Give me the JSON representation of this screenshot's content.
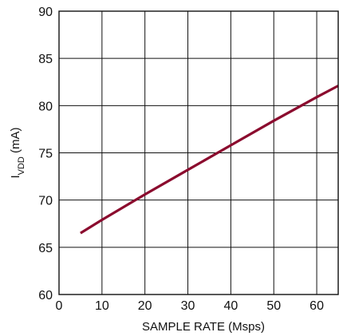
{
  "chart_data": {
    "type": "line",
    "title": "",
    "xlabel": "SAMPLE RATE (Msps)",
    "ylabel": {
      "main": "I",
      "sub": "VDD",
      "unit": " (mA)"
    },
    "xlim": [
      0,
      65
    ],
    "ylim": [
      60,
      90
    ],
    "x_ticks": [
      "0",
      "10",
      "20",
      "30",
      "40",
      "50",
      "60"
    ],
    "y_ticks": [
      "60",
      "65",
      "70",
      "75",
      "80",
      "85",
      "90"
    ],
    "x_tick_values": [
      0,
      10,
      20,
      30,
      40,
      50,
      60
    ],
    "y_tick_values": [
      60,
      65,
      70,
      75,
      80,
      85,
      90
    ],
    "grid": true,
    "series": [
      {
        "color": "#8b0b2e",
        "x": [
          5,
          10,
          20,
          30,
          40,
          50,
          60,
          65
        ],
        "y": [
          66.5,
          67.9,
          70.6,
          73.2,
          75.8,
          78.4,
          80.9,
          82.1
        ]
      }
    ]
  }
}
